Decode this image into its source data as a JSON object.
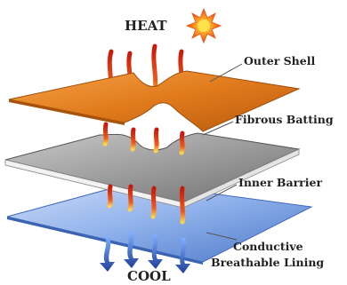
{
  "diagram": {
    "heat_label": "HEAT",
    "cool_label": "COOL",
    "layers": [
      {
        "name": "outer-shell",
        "label": "Outer Shell",
        "color": "#e07a1c"
      },
      {
        "name": "fibrous-batting",
        "label": "Fibrous Batting",
        "color": "#9a9a9a"
      },
      {
        "name": "inner-barrier",
        "label": "Inner Barrier",
        "color": "#ffffff"
      },
      {
        "name": "conductive-lining",
        "label_line1": "Conductive",
        "label_line2": "Breathable Lining",
        "color": "#8fb2ea"
      }
    ],
    "colors": {
      "heat_arrow": "#e83a1a",
      "cool_arrow": "#2f5fb4",
      "sun": "#f15a1a"
    },
    "icons": [
      "sun-icon",
      "heat-arrow-icon",
      "cool-arrow-icon"
    ]
  }
}
